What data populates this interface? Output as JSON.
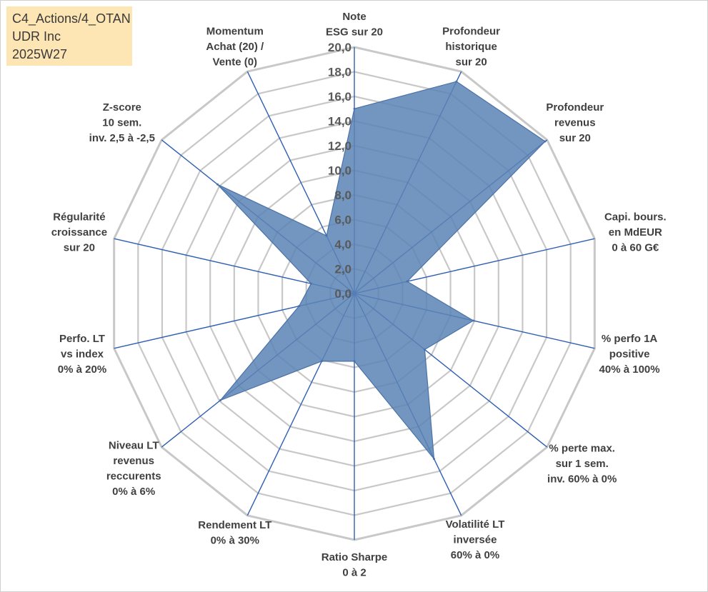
{
  "info_box": {
    "line1": "C4_Actions/4_OTAN",
    "line2": "UDR Inc",
    "line3": "2025W27"
  },
  "colors": {
    "grid": "#c8c8c8",
    "spoke": "#2f5fb3",
    "fill": "#5b84b5",
    "fill_stroke": "#4a72a8",
    "tick_text": "#595959"
  },
  "chart_data": {
    "type": "radar",
    "min": 0,
    "max": 20,
    "step": 2,
    "grid": true,
    "tick_labels": [
      "0,0",
      "2,0",
      "4,0",
      "6,0",
      "8,0",
      "10,0",
      "12,0",
      "14,0",
      "16,0",
      "18,0",
      "20,0"
    ],
    "axes": [
      {
        "label": [
          "Note",
          "ESG sur 20"
        ]
      },
      {
        "label": [
          "Profondeur",
          "historique",
          "sur 20"
        ]
      },
      {
        "label": [
          "Profondeur",
          "revenus",
          "sur 20"
        ]
      },
      {
        "label": [
          "Capi. bours.",
          "en MdEUR",
          "0 à 60 G€"
        ]
      },
      {
        "label": [
          "% perfo 1A",
          "positive",
          "40% à 100%"
        ]
      },
      {
        "label": [
          "% perte max.",
          "sur 1 sem.",
          "inv. 60% à 0%"
        ]
      },
      {
        "label": [
          "Volatilité LT",
          "inversée",
          "60% à 0%"
        ]
      },
      {
        "label": [
          "Ratio Sharpe",
          "0 à 2"
        ]
      },
      {
        "label": [
          "Rendement LT",
          "0% à 30%"
        ]
      },
      {
        "label": [
          "Niveau LT",
          "revenus",
          "reccurents",
          "0% à 6%"
        ]
      },
      {
        "label": [
          "Perfo. LT",
          "vs index",
          "0% à 20%"
        ]
      },
      {
        "label": [
          "Régularité",
          "croissance",
          "sur 20"
        ]
      },
      {
        "label": [
          "Z-score",
          "10 sem.",
          "inv. 2,5 à -2,5"
        ]
      },
      {
        "label": [
          "Momentum",
          "Achat (20) /",
          "Vente (0)"
        ]
      }
    ],
    "series": [
      {
        "values": [
          15.0,
          19.1,
          19.8,
          4.4,
          9.9,
          7.3,
          14.9,
          5.5,
          6.1,
          13.9,
          4.6,
          3.6,
          14.2,
          5.2
        ]
      }
    ]
  }
}
